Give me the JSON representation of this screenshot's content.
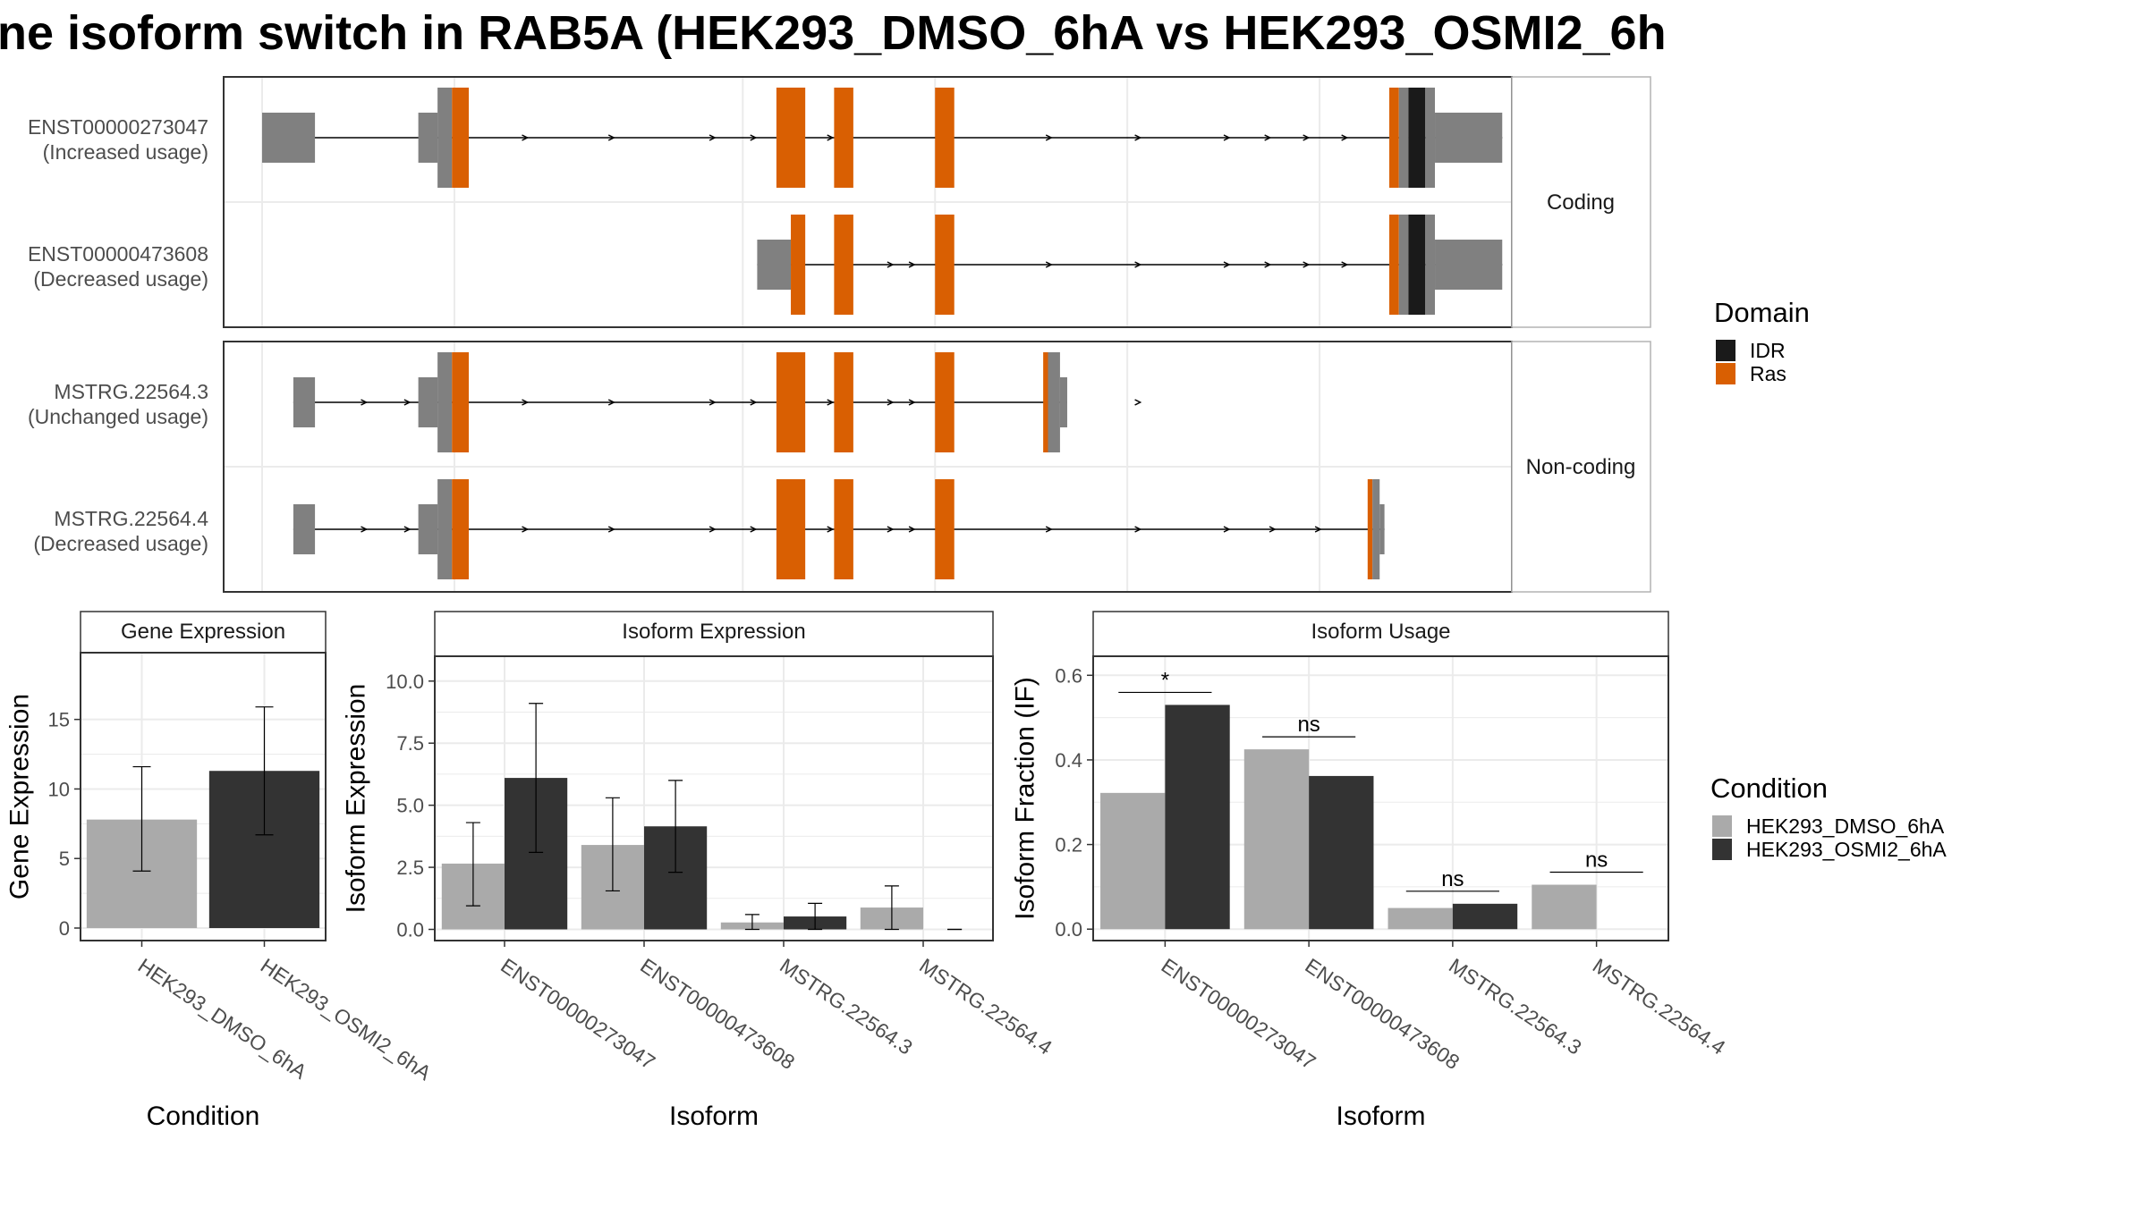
{
  "title": "ne isoform switch in RAB5A (HEK293_DMSO_6hA vs HEK293_OSMI2_6h",
  "colors": {
    "grey_exon": "#808080",
    "ras": "#d95f02",
    "idr": "#1a1a1a",
    "dmso": "#aaaaaa",
    "osmi": "#333333",
    "grid": "#ebebeb"
  },
  "transcript_panel": {
    "groups": [
      "Coding",
      "Non-coding"
    ],
    "transcripts": [
      {
        "group": "Coding",
        "id": "ENST00000273047",
        "usage": "(Increased usage)",
        "arrows": [
          6.5,
          8.3,
          10.4,
          11.25,
          12.05,
          12.85,
          17.4,
          19.25,
          21.1,
          21.95,
          22.75,
          23.55
        ],
        "exons": [
          {
            "start": 1,
            "end": 2.1,
            "type": "utr"
          },
          {
            "start": 4.25,
            "end": 4.65,
            "type": "utr_mid"
          },
          {
            "start": 4.65,
            "end": 4.95,
            "type": "cds"
          },
          {
            "start": 4.95,
            "end": 5.3,
            "type": "ras"
          },
          {
            "start": 11.7,
            "end": 12.3,
            "type": "ras"
          },
          {
            "start": 12.9,
            "end": 13.3,
            "type": "ras"
          },
          {
            "start": 15,
            "end": 15.4,
            "type": "ras"
          },
          {
            "start": 24.45,
            "end": 24.65,
            "type": "ras"
          },
          {
            "start": 24.65,
            "end": 24.85,
            "type": "cds"
          },
          {
            "start": 24.85,
            "end": 25.2,
            "type": "idr"
          },
          {
            "start": 25.2,
            "end": 25.4,
            "type": "cds"
          },
          {
            "start": 25.4,
            "end": 26.8,
            "type": "utr"
          }
        ]
      },
      {
        "group": "Coding",
        "id": "ENST00000473608",
        "usage": "(Decreased usage)",
        "arrows": [
          14.1,
          14.55,
          17.4,
          19.25,
          21.1,
          21.95,
          22.75,
          23.55
        ],
        "exons": [
          {
            "start": 11.3,
            "end": 12,
            "type": "utr"
          },
          {
            "start": 12,
            "end": 12.3,
            "type": "ras"
          },
          {
            "start": 12.9,
            "end": 13.3,
            "type": "ras"
          },
          {
            "start": 15,
            "end": 15.4,
            "type": "ras"
          },
          {
            "start": 24.45,
            "end": 24.65,
            "type": "ras"
          },
          {
            "start": 24.65,
            "end": 24.85,
            "type": "cds"
          },
          {
            "start": 24.85,
            "end": 25.2,
            "type": "idr"
          },
          {
            "start": 25.2,
            "end": 25.4,
            "type": "cds"
          },
          {
            "start": 25.4,
            "end": 26.8,
            "type": "utr"
          }
        ]
      },
      {
        "group": "Non-coding",
        "id": "MSTRG.22564.3",
        "usage": "(Unchanged usage)",
        "arrows": [
          3.15,
          4.05,
          6.5,
          8.3,
          10.4,
          11.25,
          12.05,
          12.85,
          14.1,
          14.55,
          17.4,
          19.25
        ],
        "exons": [
          {
            "start": 1.65,
            "end": 2.1,
            "type": "utr"
          },
          {
            "start": 4.25,
            "end": 4.65,
            "type": "utr_mid"
          },
          {
            "start": 4.65,
            "end": 4.95,
            "type": "cds"
          },
          {
            "start": 4.95,
            "end": 5.3,
            "type": "ras"
          },
          {
            "start": 11.7,
            "end": 12.3,
            "type": "ras"
          },
          {
            "start": 12.9,
            "end": 13.3,
            "type": "ras"
          },
          {
            "start": 15,
            "end": 15.4,
            "type": "ras"
          },
          {
            "start": 17.25,
            "end": 17.35,
            "type": "ras"
          },
          {
            "start": 17.35,
            "end": 17.6,
            "type": "cds"
          },
          {
            "start": 17.6,
            "end": 17.75,
            "type": "utr"
          }
        ]
      },
      {
        "group": "Non-coding",
        "id": "MSTRG.22564.4",
        "usage": "(Decreased usage)",
        "arrows": [
          3.15,
          4.05,
          6.5,
          8.3,
          10.4,
          11.25,
          12.05,
          12.85,
          14.1,
          14.55,
          17.4,
          19.25,
          21.1,
          22.05,
          23.0
        ],
        "exons": [
          {
            "start": 1.65,
            "end": 2.1,
            "type": "utr"
          },
          {
            "start": 4.25,
            "end": 4.65,
            "type": "utr_mid"
          },
          {
            "start": 4.65,
            "end": 4.95,
            "type": "cds"
          },
          {
            "start": 4.95,
            "end": 5.3,
            "type": "ras"
          },
          {
            "start": 11.7,
            "end": 12.3,
            "type": "ras"
          },
          {
            "start": 12.9,
            "end": 13.3,
            "type": "ras"
          },
          {
            "start": 15,
            "end": 15.4,
            "type": "ras"
          },
          {
            "start": 24.0,
            "end": 24.1,
            "type": "ras"
          },
          {
            "start": 24.1,
            "end": 24.25,
            "type": "cds"
          },
          {
            "start": 24.25,
            "end": 24.35,
            "type": "utr"
          }
        ]
      }
    ]
  },
  "legend_domain": {
    "title": "Domain",
    "items": [
      {
        "label": "IDR",
        "color": "#1a1a1a"
      },
      {
        "label": "Ras",
        "color": "#d95f02"
      }
    ]
  },
  "legend_condition": {
    "title": "Condition",
    "items": [
      {
        "label": "HEK293_DMSO_6hA",
        "color": "#aaaaaa"
      },
      {
        "label": "HEK293_OSMI2_6hA",
        "color": "#333333"
      }
    ]
  },
  "chart_data": [
    {
      "type": "bar",
      "title": "Gene Expression",
      "xlabel": "Condition",
      "ylabel": "Gene Expression",
      "categories": [
        "HEK293_DMSO_6hA",
        "HEK293_OSMI2_6hA"
      ],
      "values": [
        7.8,
        11.3
      ],
      "errors": [
        [
          4.1,
          11.6
        ],
        [
          6.7,
          15.9
        ]
      ],
      "ylim": [
        -0.9,
        19.8
      ],
      "yticks": [
        0,
        5,
        10,
        15
      ]
    },
    {
      "type": "bar",
      "title": "Isoform Expression",
      "xlabel": "Isoform",
      "ylabel": "Isoform Expression",
      "categories": [
        "ENST00000273047",
        "ENST00000473608",
        "MSTRG.22564.3",
        "MSTRG.22564.4"
      ],
      "series": [
        {
          "name": "HEK293_DMSO_6hA",
          "values": [
            2.65,
            3.4,
            0.28,
            0.88
          ],
          "errors": [
            [
              0.95,
              4.3
            ],
            [
              1.55,
              5.3
            ],
            [
              0.0,
              0.6
            ],
            [
              0.0,
              1.75
            ]
          ]
        },
        {
          "name": "HEK293_OSMI2_6hA",
          "values": [
            6.1,
            4.15,
            0.52,
            0.0
          ],
          "errors": [
            [
              3.1,
              9.1
            ],
            [
              2.3,
              6.0
            ],
            [
              0.0,
              1.05
            ],
            [
              0.0,
              0.0
            ]
          ]
        }
      ],
      "ylim": [
        -0.45,
        11.0
      ],
      "yticks": [
        0,
        2.5,
        5,
        7.5,
        10
      ],
      "yticklabels": [
        "0.0",
        "2.5",
        "5.0",
        "7.5",
        "10.0"
      ]
    },
    {
      "type": "bar",
      "title": "Isoform Usage",
      "xlabel": "Isoform",
      "ylabel": "Isoform Fraction (IF)",
      "categories": [
        "ENST00000273047",
        "ENST00000473608",
        "MSTRG.22564.3",
        "MSTRG.22564.4"
      ],
      "series": [
        {
          "name": "HEK293_DMSO_6hA",
          "values": [
            0.322,
            0.425,
            0.05,
            0.105
          ]
        },
        {
          "name": "HEK293_OSMI2_6hA",
          "values": [
            0.53,
            0.362,
            0.06,
            0.0
          ]
        }
      ],
      "significance": [
        "*",
        "ns",
        "ns",
        "ns"
      ],
      "ylim": [
        -0.027,
        0.645
      ],
      "yticks": [
        0,
        0.2,
        0.4,
        0.6
      ],
      "yticklabels": [
        "0.0",
        "0.2",
        "0.4",
        "0.6"
      ]
    }
  ]
}
